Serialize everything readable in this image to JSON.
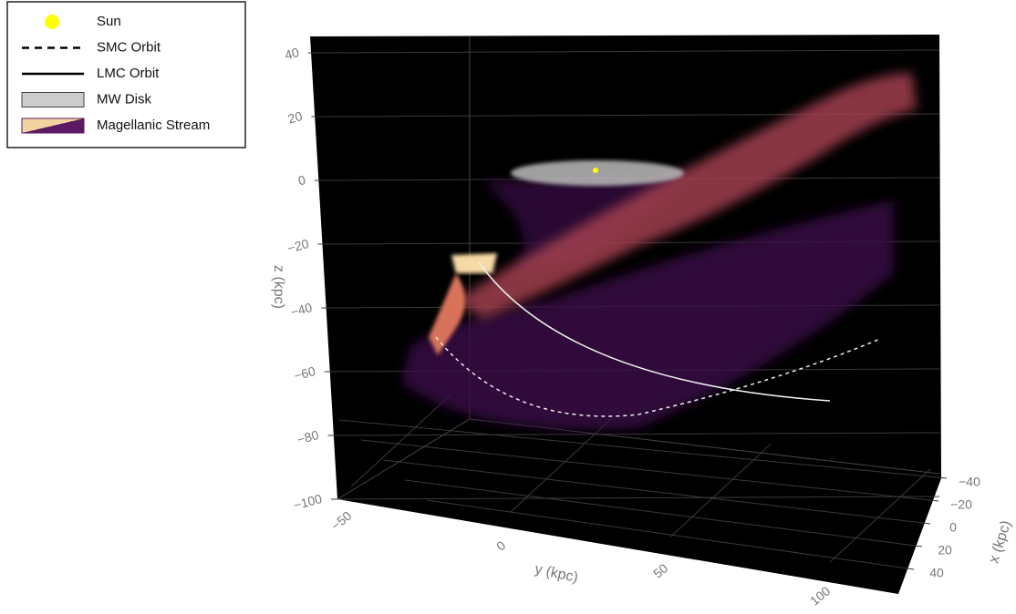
{
  "chart_data": {
    "type": "scatter3d",
    "legend": [
      {
        "name": "Sun",
        "color": "#ffff00"
      },
      {
        "name": "SMC Orbit",
        "color": "#000000"
      },
      {
        "name": "LMC Orbit",
        "color": "#000000"
      },
      {
        "name": "MW Disk",
        "color": "#cccccc"
      },
      {
        "name": "Magellanic Stream",
        "color": "#5b1a63"
      }
    ],
    "xaxis_title": "x (kpc)",
    "yaxis_title": "y (kpc)",
    "zaxis_title": "z (kpc)",
    "xticks": [
      {
        "value": -40,
        "label": "−40"
      },
      {
        "value": -20,
        "label": "−20"
      },
      0,
      20,
      40
    ],
    "yticks": [
      {
        "value": -50,
        "label": "−50"
      },
      0,
      50,
      100
    ],
    "zticks": [
      40,
      20,
      0,
      {
        "value": -20,
        "label": "−20"
      },
      {
        "value": -40,
        "label": "−40"
      },
      {
        "value": -60,
        "label": "−60"
      },
      {
        "value": -80,
        "label": "−80"
      },
      {
        "value": -100,
        "label": "−100"
      }
    ]
  }
}
